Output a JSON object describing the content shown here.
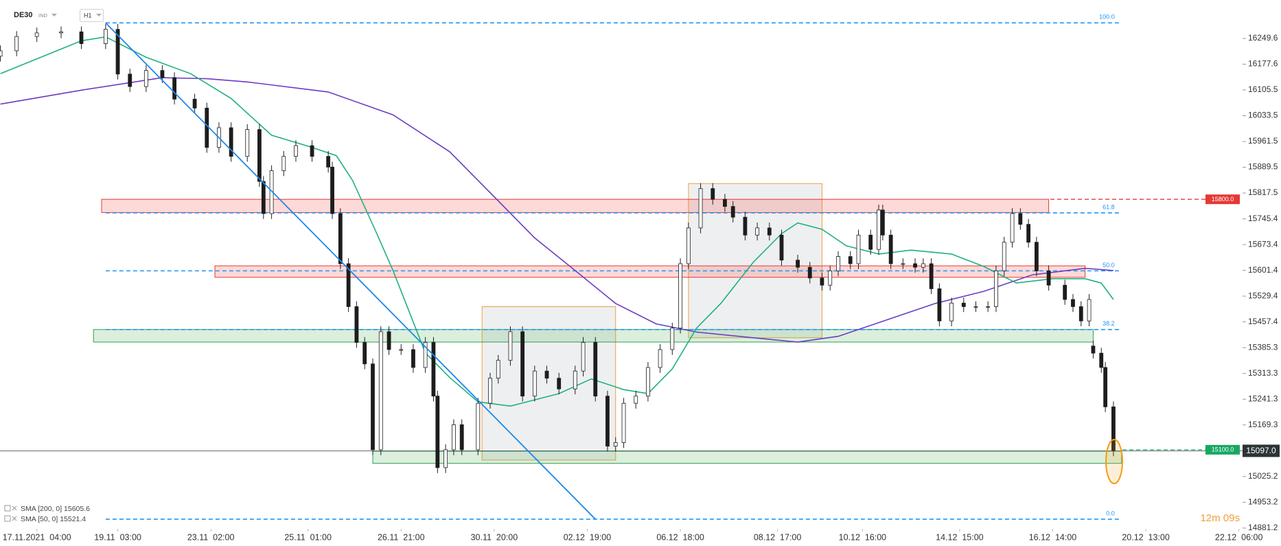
{
  "chart_data": {
    "type": "candlestick",
    "symbol": "DE30",
    "symbol_type": "IND",
    "interval": "H1",
    "x": [
      -9,
      -5,
      0,
      6,
      11,
      17,
      20,
      23,
      27,
      31,
      34,
      39,
      42,
      45,
      48,
      52,
      55,
      56,
      58,
      61,
      64,
      68,
      72,
      73,
      75,
      77,
      79,
      81,
      83,
      85,
      87,
      90,
      93,
      96,
      98,
      99,
      101,
      103,
      105,
      109,
      112,
      114,
      117,
      120,
      123,
      126,
      129,
      133,
      135,
      138,
      141,
      143,
      145,
      148,
      151,
      154,
      157,
      159,
      161,
      164,
      167,
      170,
      172,
      175,
      178,
      181,
      184,
      188,
      191,
      194,
      196,
      198,
      201,
      203,
      206,
      208,
      209,
      211,
      214,
      217,
      219,
      221,
      223,
      226,
      229,
      232,
      235,
      237,
      239,
      241,
      243,
      245,
      247,
      250,
      254,
      256,
      258,
      260,
      261,
      263,
      264,
      266
    ],
    "open": [
      16200,
      16215,
      16255,
      16265,
      16268,
      16235,
      16275,
      16150,
      16115,
      16160,
      16140,
      16080,
      16055,
      15945,
      16000,
      15920,
      15995,
      15850,
      15760,
      15880,
      15920,
      15950,
      15920,
      15890,
      15760,
      15620,
      15500,
      15400,
      15340,
      15100,
      15430,
      15380,
      15380,
      15330,
      15400,
      15250,
      15050,
      15100,
      15170,
      15100,
      15230,
      15300,
      15350,
      15430,
      15250,
      15320,
      15300,
      15270,
      15320,
      15400,
      15250,
      15110,
      15120,
      15230,
      15250,
      15330,
      15380,
      15440,
      15620,
      15720,
      15830,
      15800,
      15780,
      15750,
      15700,
      15720,
      15700,
      15630,
      15610,
      15580,
      15560,
      15600,
      15640,
      15620,
      15700,
      15660,
      15770,
      15700,
      15620,
      15620,
      15610,
      15620,
      15550,
      15460,
      15510,
      15500,
      15500,
      15500,
      15600,
      15680,
      15760,
      15730,
      15680,
      15600,
      15560,
      15520,
      15500,
      15460,
      15390,
      15370,
      15330,
      15220
    ],
    "high": [
      16230,
      16270,
      16280,
      16283,
      16283,
      16290,
      16290,
      16165,
      16175,
      16175,
      16155,
      16095,
      16070,
      16015,
      16015,
      16010,
      16010,
      15865,
      15895,
      15935,
      15965,
      15965,
      15935,
      15905,
      15775,
      15635,
      15515,
      15415,
      15355,
      15445,
      15445,
      15395,
      15395,
      15415,
      15415,
      15265,
      15115,
      15185,
      15185,
      15245,
      15315,
      15365,
      15445,
      15445,
      15335,
      15335,
      15315,
      15335,
      15415,
      15415,
      15265,
      15135,
      15245,
      15265,
      15345,
      15395,
      15455,
      15635,
      15735,
      15845,
      15845,
      15815,
      15795,
      15765,
      15735,
      15735,
      15715,
      15645,
      15625,
      15595,
      15615,
      15655,
      15655,
      15715,
      15715,
      15785,
      15785,
      15715,
      15635,
      15635,
      15635,
      15635,
      15565,
      15525,
      15525,
      15515,
      15515,
      15615,
      15695,
      15775,
      15775,
      15745,
      15695,
      15615,
      15575,
      15535,
      15515,
      15535,
      15405,
      15385,
      15345,
      15235
    ],
    "low": [
      16185,
      16200,
      16240,
      16250,
      16220,
      16220,
      16135,
      16100,
      16100,
      16125,
      16065,
      16040,
      15930,
      15930,
      15905,
      15905,
      15835,
      15745,
      15745,
      15865,
      15905,
      15905,
      15875,
      15745,
      15605,
      15485,
      15385,
      15325,
      15085,
      15085,
      15365,
      15365,
      15315,
      15315,
      15235,
      15035,
      15035,
      15085,
      15085,
      15085,
      15215,
      15285,
      15335,
      15235,
      15235,
      15285,
      15255,
      15255,
      15305,
      15235,
      15095,
      15095,
      15105,
      15215,
      15235,
      15315,
      15365,
      15425,
      15605,
      15705,
      15785,
      15765,
      15735,
      15685,
      15685,
      15685,
      15615,
      15595,
      15565,
      15545,
      15545,
      15585,
      15605,
      15605,
      15645,
      15645,
      15685,
      15605,
      15605,
      15595,
      15595,
      15535,
      15445,
      15445,
      15485,
      15485,
      15485,
      15485,
      15585,
      15665,
      15715,
      15665,
      15585,
      15545,
      15505,
      15485,
      15445,
      15445,
      15355,
      15315,
      15205,
      15082
    ],
    "close": [
      16215,
      16255,
      16265,
      16268,
      16235,
      16275,
      16150,
      16115,
      16160,
      16140,
      16080,
      16055,
      15945,
      16000,
      15920,
      15995,
      15850,
      15760,
      15880,
      15920,
      15950,
      15920,
      15890,
      15760,
      15620,
      15500,
      15400,
      15340,
      15100,
      15430,
      15380,
      15380,
      15330,
      15400,
      15250,
      15050,
      15100,
      15170,
      15100,
      15230,
      15300,
      15350,
      15430,
      15250,
      15320,
      15300,
      15270,
      15320,
      15400,
      15250,
      15110,
      15120,
      15230,
      15250,
      15330,
      15380,
      15440,
      15620,
      15720,
      15830,
      15800,
      15780,
      15750,
      15700,
      15720,
      15700,
      15630,
      15610,
      15580,
      15560,
      15600,
      15640,
      15620,
      15700,
      15660,
      15770,
      15700,
      15620,
      15620,
      15610,
      15620,
      15550,
      15460,
      15510,
      15500,
      15500,
      15500,
      15600,
      15680,
      15760,
      15730,
      15680,
      15600,
      15560,
      15520,
      15500,
      15460,
      15520,
      15370,
      15330,
      15220,
      15097
    ],
    "up_color": "#ffffff",
    "down_color": "#1d1d1d",
    "series": [
      {
        "name": "SMA [200, 0] 15605.6",
        "color": "#6a3bc4",
        "x": [
          -9,
          11,
          31,
          42,
          52,
          72,
          88,
          102,
          113,
          123,
          133,
          143,
          153,
          163,
          177,
          188,
          198,
          210,
          222,
          234,
          246,
          259,
          266
        ],
        "values": [
          16066,
          16105,
          16140,
          16137,
          16128,
          16100,
          16036,
          15933,
          15807,
          15692,
          15601,
          15509,
          15452,
          15429,
          15413,
          15401,
          15417,
          15463,
          15509,
          15543,
          15589,
          15607,
          15601
        ]
      },
      {
        "name": "SMA [50, 0] 15521.4",
        "color": "#1fb07f",
        "x": [
          -9,
          1,
          11,
          17,
          27,
          38,
          48,
          58,
          68,
          74,
          78,
          84,
          88,
          96,
          102,
          109,
          117,
          129,
          137,
          145,
          151,
          157,
          163,
          169,
          177,
          184,
          188,
          194,
          200,
          208,
          216,
          226,
          234,
          242,
          251,
          259,
          263,
          266
        ],
        "values": [
          16151,
          16197,
          16243,
          16254,
          16197,
          16151,
          16082,
          15979,
          15945,
          15922,
          15853,
          15704,
          15601,
          15371,
          15302,
          15234,
          15222,
          15257,
          15298,
          15268,
          15257,
          15326,
          15440,
          15509,
          15624,
          15704,
          15734,
          15716,
          15670,
          15647,
          15658,
          15647,
          15612,
          15566,
          15578,
          15578,
          15566,
          15520
        ]
      }
    ],
    "xlim": [
      -9.1,
      297.9
    ],
    "xticks": [
      {
        "value": 0,
        "label": "17.11.2021  04:00"
      },
      {
        "value": 20,
        "label": "19.11  03:00"
      },
      {
        "value": 43,
        "label": "23.11  02:00"
      },
      {
        "value": 67,
        "label": "25.11  01:00"
      },
      {
        "value": 90,
        "label": "26.11  21:00"
      },
      {
        "value": 113,
        "label": "30.11  20:00"
      },
      {
        "value": 136,
        "label": "02.12  19:00"
      },
      {
        "value": 159,
        "label": "06.12  18:00"
      },
      {
        "value": 183,
        "label": "08.12  17:00"
      },
      {
        "value": 204,
        "label": "10.12  16:00"
      },
      {
        "value": 228,
        "label": "14.12  15:00"
      },
      {
        "value": 251,
        "label": "16.12  14:00"
      },
      {
        "value": 274,
        "label": "20.12  13:00"
      },
      {
        "value": 297,
        "label": "22.12  06:00"
      }
    ],
    "ylim": [
      14879,
      16357
    ],
    "yticks": [
      16249.6,
      16177.6,
      16105.5,
      16033.5,
      15961.5,
      15889.5,
      15817.5,
      15745.4,
      15673.4,
      15601.4,
      15529.4,
      15457.4,
      15385.3,
      15313.3,
      15241.3,
      15169.3,
      15025.2,
      14953.2,
      14881.2
    ],
    "fib_levels": [
      {
        "value": 16293,
        "label": "100.0"
      },
      {
        "value": 15762,
        "label": "61.8"
      },
      {
        "value": 15600,
        "label": "50.0"
      },
      {
        "value": 15436,
        "label": "38.2"
      },
      {
        "value": 14906,
        "label": "0.0"
      }
    ],
    "fib_color": "#2196f3",
    "zones": [
      {
        "x": [
          110,
          143
        ],
        "y": [
          15071,
          15500
        ],
        "color": "#aab0b8",
        "stroke": "#f0a040"
      },
      {
        "x": [
          161,
          194
        ],
        "y": [
          15413,
          15844
        ],
        "color": "#aab0b8",
        "stroke": "#f0a040"
      },
      {
        "x": [
          16,
          250
        ],
        "y": [
          15763,
          15800
        ],
        "color": "#f44336",
        "stroke": "#e53935"
      },
      {
        "x": [
          44,
          259
        ],
        "y": [
          15582,
          15614
        ],
        "color": "#f44336",
        "stroke": "#e53935"
      },
      {
        "x": [
          14,
          261
        ],
        "y": [
          15401,
          15436
        ],
        "color": "#4caf50",
        "stroke": "#2e9e5b"
      },
      {
        "x": [
          83,
          268
        ],
        "y": [
          15062,
          15096
        ],
        "color": "#4caf50",
        "stroke": "#2e9e5b"
      }
    ],
    "trendline": {
      "x": [
        17,
        138
      ],
      "y": [
        16293,
        14906
      ],
      "color": "#1e88e5"
    },
    "price_lines": [
      {
        "value": 15800,
        "label": "15800.0",
        "color": "#e53935"
      },
      {
        "value": 15100,
        "label": "15100.0",
        "color": "#17a862"
      }
    ],
    "current_price": {
      "value": 15097,
      "label": "15097.0",
      "color": "#2d3436"
    },
    "timer": "12m 09s"
  }
}
